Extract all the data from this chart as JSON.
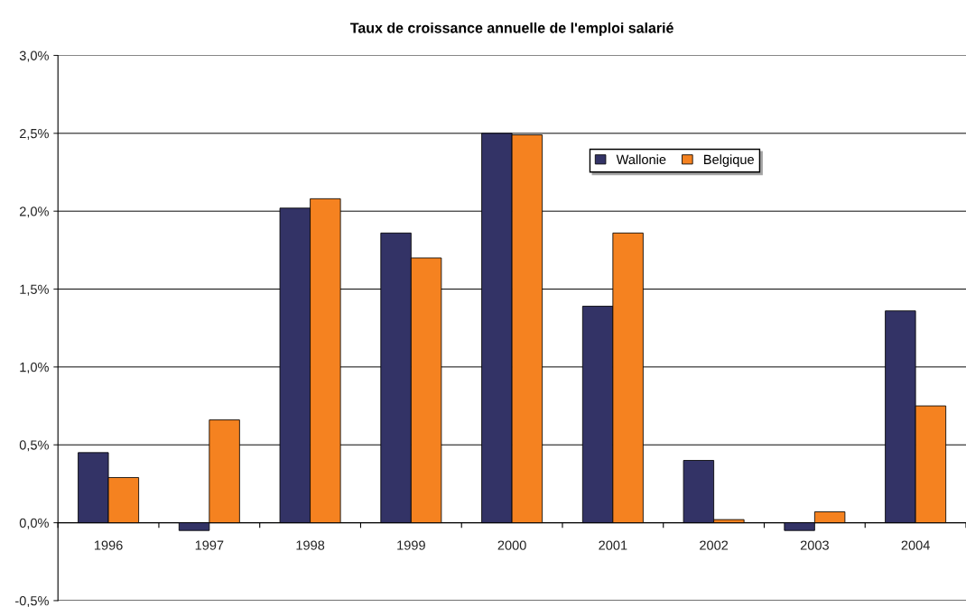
{
  "chart_data": {
    "type": "bar",
    "title": "Taux de croissance annuelle de l'emploi salarié",
    "categories": [
      "1996",
      "1997",
      "1998",
      "1999",
      "2000",
      "2001",
      "2002",
      "2003",
      "2004"
    ],
    "series": [
      {
        "name": "Wallonie",
        "color": "#333366",
        "values": [
          0.45,
          -0.05,
          2.02,
          1.86,
          2.5,
          1.39,
          0.4,
          -0.05,
          1.36
        ]
      },
      {
        "name": "Belgique",
        "color": "#f58220",
        "values": [
          0.29,
          0.66,
          2.08,
          1.7,
          2.49,
          1.86,
          0.02,
          0.07,
          0.75
        ]
      }
    ],
    "ylim": [
      -0.5,
      3.0
    ],
    "yticks": [
      {
        "value": -0.5,
        "label": "-0,5%"
      },
      {
        "value": 0,
        "label": "0,0%"
      },
      {
        "value": 0.5,
        "label": "0,5%"
      },
      {
        "value": 1.0,
        "label": "1,0%"
      },
      {
        "value": 1.5,
        "label": "1,5%"
      },
      {
        "value": 2.0,
        "label": "2,0%"
      },
      {
        "value": 2.5,
        "label": "2,5%"
      },
      {
        "value": 3.0,
        "label": "3,0%"
      }
    ],
    "grid": "y",
    "legend": "top right"
  }
}
